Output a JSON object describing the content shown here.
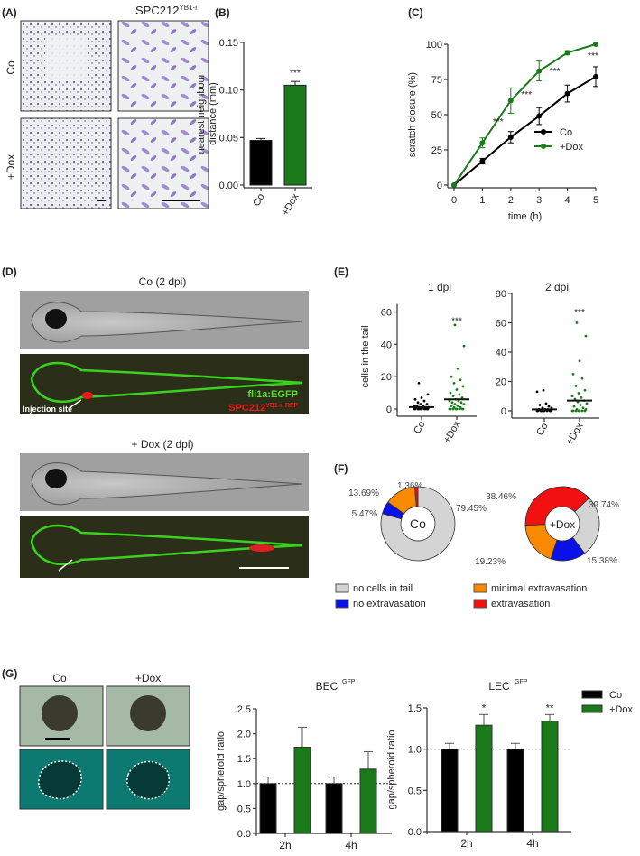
{
  "panels": {
    "A": {
      "label": "(A)",
      "title": "SPC212",
      "title_sup": "YB1-i",
      "rows": [
        "Co",
        "+Dox"
      ]
    },
    "D": {
      "label": "(D)",
      "title_co": "Co (2 dpi)",
      "title_dox": "+ Dox (2 dpi)",
      "legend_green": "fli1a:EGFP",
      "legend_red": "SPC212",
      "legend_red_sup": "YB1-i, RFP",
      "injection_label": "Injection site"
    },
    "G": {
      "label": "(G)",
      "cols": [
        "Co",
        "+Dox"
      ]
    }
  },
  "colors": {
    "co": "#000000",
    "dox": "#1a7a1a",
    "gray": "#d4d4d4",
    "blue": "#0a10e8",
    "orange": "#f98a00",
    "red": "#f21010"
  },
  "chart_data": [
    {
      "id": "B",
      "label": "(B)",
      "type": "bar",
      "categories": [
        "Co",
        "+Dox"
      ],
      "values": [
        0.047,
        0.105
      ],
      "errors": [
        0.002,
        0.004
      ],
      "ylabel_lines": [
        "nearest neighbour",
        "distance (mm)"
      ],
      "ylim": [
        0,
        0.15
      ],
      "yticks": [
        "0.00",
        "0.05",
        "0.10",
        "0.15"
      ],
      "annotations": [
        "",
        "***"
      ]
    },
    {
      "id": "C",
      "label": "(C)",
      "type": "line",
      "x": [
        0,
        1,
        2,
        3,
        4,
        5
      ],
      "xlabel": "time (h)",
      "ylabel": "scratch closure (%)",
      "ylim": [
        0,
        100
      ],
      "yticks": [
        "0",
        "25",
        "50",
        "75",
        "100"
      ],
      "xticks": [
        "0",
        "1",
        "2",
        "3",
        "4",
        "5"
      ],
      "series": [
        {
          "name": "Co",
          "values": [
            0,
            17,
            34,
            49,
            65,
            77
          ],
          "errors": [
            0,
            2,
            4,
            6,
            6,
            7
          ]
        },
        {
          "name": "+Dox",
          "values": [
            0,
            30,
            60,
            81,
            94,
            100
          ],
          "errors": [
            0,
            3.5,
            9,
            7,
            1.5,
            0.5
          ]
        }
      ],
      "annotations": [
        {
          "x": 2,
          "text": "***"
        },
        {
          "x": 3,
          "text": "***"
        },
        {
          "x": 4,
          "text": "***"
        },
        {
          "x": 5,
          "text": "***"
        }
      ],
      "legend": "bottom-right"
    },
    {
      "id": "E1",
      "label": "(E)",
      "type": "scatter",
      "title": "1 dpi",
      "ylabel": "cells in the tail",
      "ylim": [
        0,
        65
      ],
      "yticks": [
        "0",
        "20",
        "40",
        "60"
      ],
      "categories": [
        "Co",
        "+Dox"
      ],
      "means": [
        1.2,
        6
      ],
      "annotation": "***",
      "points": [
        [
          0,
          0,
          0,
          0,
          0,
          0,
          0,
          0,
          0,
          0,
          1,
          1,
          1,
          1,
          1,
          2,
          2,
          2,
          3,
          3,
          4,
          5,
          6,
          7,
          9,
          16
        ],
        [
          0,
          0,
          0,
          0,
          0,
          0,
          0,
          0,
          1,
          1,
          2,
          2,
          3,
          3,
          4,
          4,
          5,
          5,
          6,
          7,
          8,
          9,
          10,
          12,
          14,
          16,
          18,
          20,
          25,
          39,
          52
        ]
      ]
    },
    {
      "id": "E2",
      "title": "2 dpi",
      "type": "scatter",
      "ylim": [
        0,
        80
      ],
      "yticks": [
        "0",
        "20",
        "40",
        "60",
        "80"
      ],
      "categories": [
        "Co",
        "+Dox"
      ],
      "means": [
        1,
        7
      ],
      "annotation": "***",
      "points": [
        [
          0,
          0,
          0,
          0,
          0,
          0,
          0,
          0,
          0,
          1,
          1,
          1,
          2,
          2,
          3,
          4,
          5,
          13,
          14
        ],
        [
          0,
          0,
          0,
          0,
          0,
          0,
          0,
          1,
          1,
          2,
          3,
          4,
          5,
          6,
          7,
          8,
          9,
          10,
          12,
          14,
          17,
          22,
          25,
          34,
          51,
          60
        ]
      ]
    },
    {
      "id": "F",
      "label": "(F)",
      "type": "pie",
      "legend": [
        "no cells in tail",
        "minimal extravasation",
        "no extravasation",
        "extravasation"
      ],
      "donuts": [
        {
          "center": "Co",
          "slices": [
            {
              "cat": "no cells in tail",
              "value": 79.45,
              "text": "79.45%"
            },
            {
              "cat": "no extravasation",
              "value": 5.47,
              "text": "5.47%"
            },
            {
              "cat": "minimal extravasation",
              "value": 13.69,
              "text": "13.69%"
            },
            {
              "cat": "extravasation",
              "value": 1.36,
              "text": "1.36%"
            }
          ]
        },
        {
          "center": "+Dox",
          "slices": [
            {
              "cat": "no cells in tail",
              "value": 39.74,
              "text": "39.74%"
            },
            {
              "cat": "no extravasation",
              "value": 15.38,
              "text": "15.38%"
            },
            {
              "cat": "minimal extravasation",
              "value": 19.23,
              "text": "19.23%"
            },
            {
              "cat": "extravasation",
              "value": 38.46,
              "text": "38.46%"
            }
          ]
        }
      ]
    },
    {
      "id": "G1",
      "type": "bar",
      "title": "BEC",
      "title_sup": "GFP",
      "ylabel": "gap/spheroid ratio",
      "ylim": [
        0,
        2.5
      ],
      "yticks": [
        "0.0",
        "0.5",
        "1.0",
        "1.5",
        "2.0",
        "2.5"
      ],
      "categories": [
        "2h",
        "4h"
      ],
      "series": [
        {
          "name": "Co",
          "values": [
            1.0,
            1.0
          ],
          "errors": [
            0.13,
            0.13
          ]
        },
        {
          "name": "+Dox",
          "values": [
            1.73,
            1.29
          ],
          "errors": [
            0.4,
            0.35
          ]
        }
      ],
      "annotations": [
        "",
        ""
      ],
      "reference_line": 1.0
    },
    {
      "id": "G2",
      "type": "bar",
      "title": "LEC",
      "title_sup": "GFP",
      "ylabel": "gap/spheroid ratio",
      "ylim": [
        0,
        1.5
      ],
      "yticks": [
        "0.0",
        "0.5",
        "1.0",
        "1.5"
      ],
      "categories": [
        "2h",
        "4h"
      ],
      "series": [
        {
          "name": "Co",
          "values": [
            1.0,
            1.0
          ],
          "errors": [
            0.07,
            0.07
          ]
        },
        {
          "name": "+Dox",
          "values": [
            1.29,
            1.34
          ],
          "errors": [
            0.13,
            0.08
          ]
        }
      ],
      "annotations": [
        "*",
        "**"
      ],
      "reference_line": 1.0,
      "legend": [
        "Co",
        "+Dox"
      ]
    }
  ]
}
